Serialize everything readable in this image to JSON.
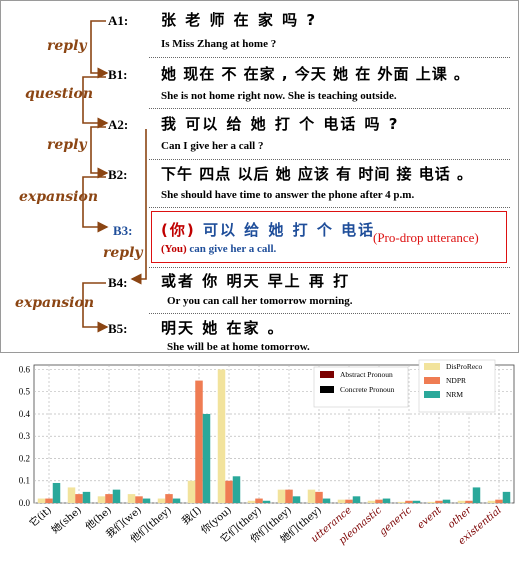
{
  "dialogue": {
    "relations": {
      "reply1": "reply",
      "question": "question",
      "reply2": "reply",
      "expansion1": "expansion",
      "reply3": "reply",
      "expansion2": "expansion"
    },
    "turns": [
      {
        "speaker": "A1:",
        "zh": "张 老 师 在 家 吗 ?",
        "en": "Is Miss Zhang at home ?"
      },
      {
        "speaker": "B1:",
        "zh": "她 现在 不 在家 , 今天 她 在 外面 上课 。",
        "en": "She is not home right now. She is teaching outside."
      },
      {
        "speaker": "A2:",
        "zh": "我 可以 给 她 打 个 电话 吗 ?",
        "en": "Can I give her a call ?"
      },
      {
        "speaker": "B2:",
        "zh": "下午 四点 以后 她 应该 有 时间 接 电话 。",
        "en": "She should have time to answer the phone after 4 p.m."
      },
      {
        "speaker": "B3:",
        "zh_pro": "(你)",
        "zh": "可以 给 她 打 个 电话",
        "en_pro": "(You)",
        "en": "can give her a call."
      },
      {
        "speaker": "B4:",
        "zh": "或者 你 明天 早上 再 打",
        "en": "Or you can call her tomorrow morning."
      },
      {
        "speaker": "B5:",
        "zh": "明天 她 在家 。",
        "en": "She will be at home tomorrow."
      }
    ],
    "prodrop_label": "(Pro-drop utterance)"
  },
  "chart_data": {
    "type": "bar",
    "categories": [
      "它(it)",
      "她(she)",
      "他(he)",
      "我们(we)",
      "他们(they)",
      "我(I)",
      "你(you)",
      "它们(they)",
      "你们(they)",
      "她们(they)",
      "utterance",
      "pleonastic",
      "generic",
      "event",
      "other",
      "existential"
    ],
    "highlight_categories": [
      "utterance",
      "pleonastic",
      "generic",
      "event",
      "other",
      "existential"
    ],
    "series": [
      {
        "name": "DisProReco",
        "color": "#f2e39c",
        "values": [
          0.02,
          0.07,
          0.03,
          0.04,
          0.02,
          0.1,
          0.6,
          0.01,
          0.06,
          0.06,
          0.015,
          0.01,
          0.005,
          0.005,
          0.01,
          0.01
        ]
      },
      {
        "name": "NDPR",
        "color": "#ef7c53",
        "values": [
          0.02,
          0.04,
          0.04,
          0.03,
          0.04,
          0.55,
          0.1,
          0.02,
          0.06,
          0.05,
          0.015,
          0.015,
          0.01,
          0.01,
          0.01,
          0.015
        ]
      },
      {
        "name": "NRM",
        "color": "#2aa89a",
        "values": [
          0.09,
          0.05,
          0.06,
          0.02,
          0.02,
          0.4,
          0.12,
          0.01,
          0.03,
          0.02,
          0.03,
          0.02,
          0.01,
          0.015,
          0.07,
          0.05
        ]
      }
    ],
    "yticks": [
      0,
      0.1,
      0.2,
      0.3,
      0.4,
      0.5,
      0.6
    ],
    "ylim": [
      0,
      0.62
    ],
    "grid": true,
    "legend_pronoun": [
      {
        "name": "Abstract Pronoun",
        "color": "#7b0000"
      },
      {
        "name": "Concrete Pronoun",
        "color": "#000000"
      }
    ],
    "legend_placement": "top-right"
  }
}
